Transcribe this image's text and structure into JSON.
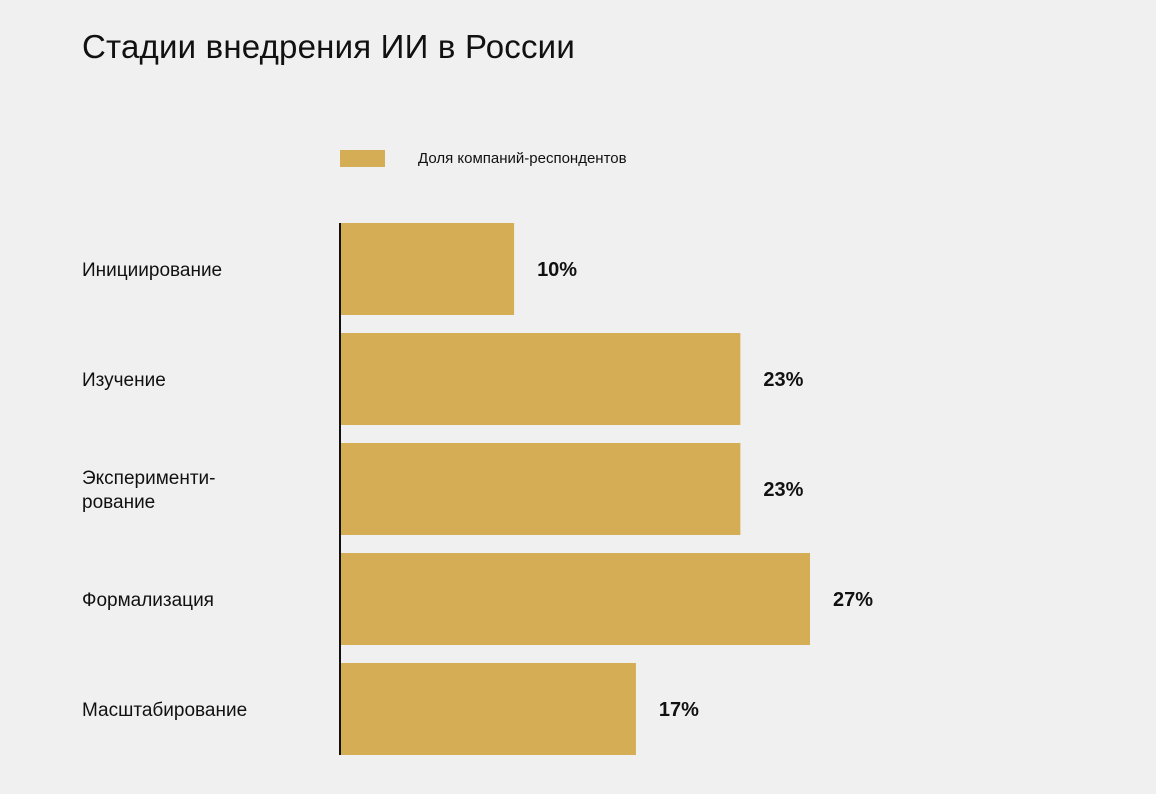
{
  "title": "Стадии внедрения ИИ в России",
  "legend": {
    "label": "Доля компаний-респондентов"
  },
  "colors": {
    "bar": "#d4ad55",
    "axis": "#111111",
    "background": "#f0f0f0"
  },
  "chart_data": {
    "type": "bar",
    "orientation": "horizontal",
    "title": "Стадии внедрения ИИ в России",
    "categories": [
      [
        "Инициирование"
      ],
      [
        "Изучение"
      ],
      [
        "Эксперименти-",
        "рование"
      ],
      [
        "Формализация"
      ],
      [
        "Масштабирование"
      ]
    ],
    "series": [
      {
        "name": "Доля компаний-респондентов",
        "values": [
          10,
          23,
          23,
          27,
          17
        ]
      }
    ],
    "data_labels": [
      "10%",
      "23%",
      "23%",
      "27%",
      "17%"
    ],
    "unit": "%",
    "xlim": [
      0,
      27
    ],
    "grid": false,
    "legend_position": "top"
  }
}
